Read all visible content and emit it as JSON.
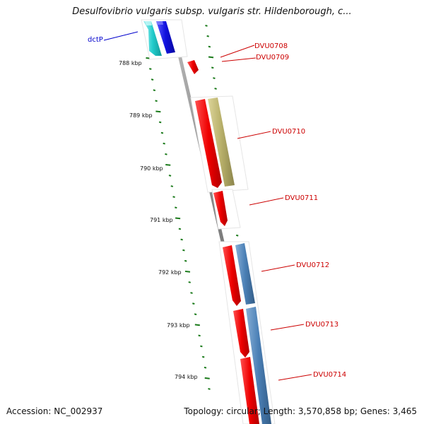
{
  "title": "Desulfovibrio vulgaris subsp. vulgaris str. Hildenborough, c...",
  "footer": {
    "accession": "Accession: NC_002937",
    "stats": "Topology: circular; Length: 3,570,858 bp; Genes: 3,465"
  },
  "chart_data": {
    "type": "genome-map",
    "ticks": [
      {
        "label": "788 kbp"
      },
      {
        "label": "789 kbp"
      },
      {
        "label": "790 kbp"
      },
      {
        "label": "791 kbp"
      },
      {
        "label": "792 kbp"
      },
      {
        "label": "793 kbp"
      },
      {
        "label": "794 kbp"
      }
    ],
    "genes": [
      {
        "id": "dctP",
        "label": "dctP",
        "label_color": "#0000cc"
      },
      {
        "id": "DVU0708",
        "label": "DVU0708",
        "label_color": "#cc0000"
      },
      {
        "id": "DVU0709",
        "label": "DVU0709",
        "label_color": "#cc0000"
      },
      {
        "id": "DVU0710",
        "label": "DVU0710",
        "label_color": "#cc0000"
      },
      {
        "id": "DVU0711",
        "label": "DVU0711",
        "label_color": "#cc0000"
      },
      {
        "id": "DVU0712",
        "label": "DVU0712",
        "label_color": "#cc0000"
      },
      {
        "id": "DVU0713",
        "label": "DVU0713",
        "label_color": "#cc0000"
      },
      {
        "id": "DVU0714",
        "label": "DVU0714",
        "label_color": "#cc0000"
      }
    ],
    "colors": {
      "backbone": "#808080",
      "tick": "#1a7a1a",
      "red_gene": "#ee0000",
      "cyan_gene": "#22cccc",
      "blue_gene": "#1010dd",
      "olive_gene": "#b8b06a",
      "steel_gene": "#4a7fb5"
    }
  }
}
